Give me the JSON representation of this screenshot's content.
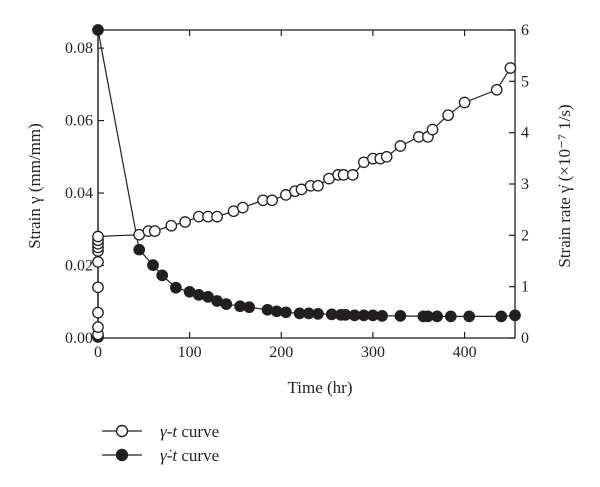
{
  "chart_data": {
    "type": "scatter",
    "x_axis": {
      "label": "Time (hr)",
      "range": [
        0,
        455
      ],
      "ticks": [
        0,
        100,
        200,
        300,
        400
      ],
      "tick_labels": [
        "0",
        "100",
        "200",
        "300",
        "400"
      ]
    },
    "y_axis_left": {
      "label": "Strain γ (mm/mm)",
      "range": [
        0,
        0.085
      ],
      "ticks": [
        0,
        0.02,
        0.04,
        0.06,
        0.08
      ],
      "tick_labels": [
        "0.00",
        "0.02",
        "0.04",
        "0.06",
        "0.08"
      ]
    },
    "y_axis_right": {
      "label": "Strain rate γ̇ (×10⁻⁷ 1/s)",
      "range": [
        0,
        6
      ],
      "ticks": [
        0,
        1,
        2,
        3,
        4,
        5,
        6
      ],
      "tick_labels": [
        "0",
        "1",
        "2",
        "3",
        "4",
        "5",
        "6"
      ]
    },
    "grid": false,
    "legend_position": "bottom-left, below plot",
    "series": [
      {
        "name": "γ-t curve",
        "axis": "left",
        "marker": "open-circle",
        "color": "#231f20",
        "x": [
          0,
          0,
          0,
          0,
          0,
          0,
          0,
          0,
          0,
          0,
          45,
          55,
          62,
          80,
          95,
          110,
          120,
          130,
          148,
          158,
          180,
          190,
          205,
          215,
          222,
          232,
          240,
          252,
          262,
          268,
          278,
          290,
          300,
          308,
          315,
          330,
          350,
          360,
          365,
          382,
          400,
          435,
          450
        ],
        "y": [
          0.001,
          0.003,
          0.007,
          0.014,
          0.021,
          0.024,
          0.025,
          0.026,
          0.027,
          0.028,
          0.0285,
          0.0295,
          0.0295,
          0.031,
          0.032,
          0.0335,
          0.0335,
          0.0335,
          0.035,
          0.036,
          0.038,
          0.038,
          0.0395,
          0.0405,
          0.041,
          0.042,
          0.042,
          0.044,
          0.045,
          0.045,
          0.045,
          0.0485,
          0.0495,
          0.0495,
          0.05,
          0.053,
          0.0555,
          0.0555,
          0.0575,
          0.0615,
          0.065,
          0.0685,
          0.0745
        ]
      },
      {
        "name": "γ̇-t curve",
        "axis": "right",
        "marker": "filled-circle",
        "color": "#231f20",
        "x": [
          0,
          0,
          45,
          60,
          70,
          85,
          100,
          110,
          120,
          130,
          140,
          155,
          165,
          185,
          195,
          205,
          220,
          230,
          240,
          255,
          265,
          270,
          280,
          290,
          300,
          310,
          330,
          355,
          360,
          370,
          385,
          405,
          440,
          455
        ],
        "y": [
          0.02,
          6,
          1.72,
          1.42,
          1.22,
          0.98,
          0.9,
          0.84,
          0.8,
          0.72,
          0.66,
          0.62,
          0.6,
          0.55,
          0.52,
          0.5,
          0.48,
          0.48,
          0.47,
          0.46,
          0.45,
          0.45,
          0.44,
          0.44,
          0.44,
          0.43,
          0.43,
          0.42,
          0.42,
          0.42,
          0.42,
          0.42,
          0.42,
          0.44
        ]
      }
    ]
  },
  "legend": {
    "items": [
      {
        "label_var": "γ",
        "label_sep": "-",
        "label_t": "t",
        "label_tail": " curve",
        "marker": "open-circle"
      },
      {
        "label_var": "γ̇",
        "label_sep": "-",
        "label_t": "t",
        "label_tail": " curve",
        "marker": "filled-circle"
      }
    ]
  },
  "colors": {
    "ink": "#231f20",
    "background": "#ffffff"
  }
}
